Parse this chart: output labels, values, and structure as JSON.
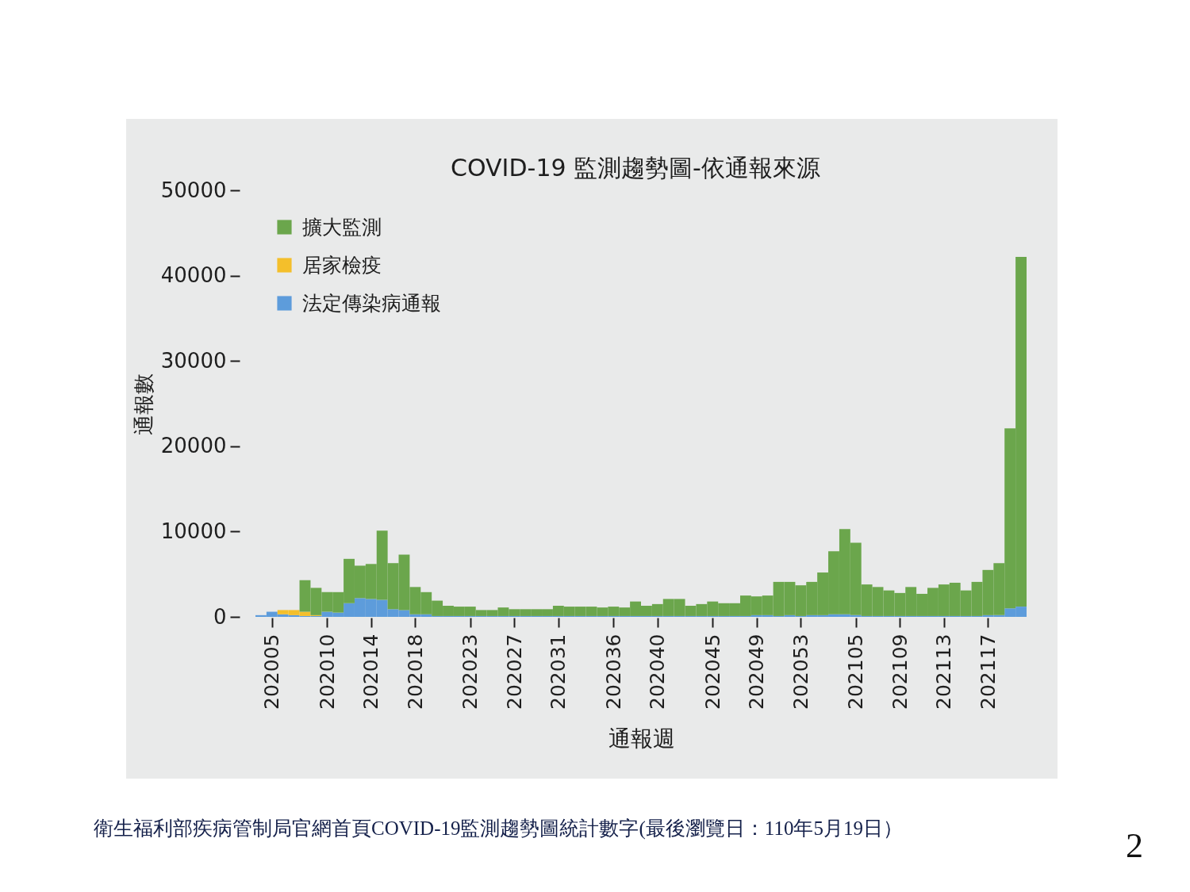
{
  "chart_data": {
    "type": "bar",
    "title": "COVID-19 監測趨勢圖-依通報來源",
    "xlabel": "通報週",
    "ylabel": "通報數",
    "categories": [
      null,
      "202005",
      null,
      null,
      null,
      null,
      "202010",
      null,
      null,
      null,
      "202014",
      null,
      null,
      null,
      "202018",
      null,
      null,
      null,
      null,
      "202023",
      null,
      null,
      null,
      "202027",
      null,
      null,
      null,
      "202031",
      null,
      null,
      null,
      null,
      "202036",
      null,
      null,
      null,
      "202040",
      null,
      null,
      null,
      null,
      "202045",
      null,
      null,
      null,
      "202049",
      null,
      null,
      null,
      "202053",
      null,
      null,
      null,
      null,
      "202105",
      null,
      null,
      null,
      "202109",
      null,
      null,
      null,
      "202113",
      null,
      null,
      null,
      "202117",
      null,
      null,
      null
    ],
    "series": [
      {
        "name": "法定傳染病通報",
        "color": "#5d9cdb",
        "values": [
          200,
          600,
          300,
          200,
          100,
          100,
          600,
          500,
          1600,
          2200,
          2100,
          2000,
          900,
          800,
          300,
          300,
          100,
          100,
          100,
          100,
          100,
          100,
          100,
          100,
          100,
          100,
          100,
          100,
          100,
          100,
          100,
          100,
          100,
          100,
          100,
          100,
          100,
          100,
          100,
          100,
          100,
          100,
          100,
          100,
          100,
          200,
          200,
          100,
          200,
          100,
          200,
          200,
          300,
          300,
          200,
          100,
          100,
          100,
          100,
          100,
          100,
          100,
          100,
          100,
          100,
          100,
          200,
          200,
          1000,
          1200
        ]
      },
      {
        "name": "居家檢疫",
        "color": "#f4bf2b",
        "values": [
          null,
          null,
          500,
          600,
          500,
          100,
          null,
          null,
          null,
          null,
          null,
          null,
          null,
          null,
          null,
          null,
          null,
          null,
          null,
          null,
          null,
          null,
          null,
          null,
          null,
          null,
          null,
          null,
          null,
          null,
          null,
          null,
          null,
          null,
          null,
          null,
          null,
          null,
          null,
          null,
          null,
          null,
          null,
          null,
          null,
          null,
          null,
          null,
          null,
          null,
          null,
          null,
          null,
          null,
          null,
          null,
          null,
          null,
          null,
          null,
          null,
          null,
          null,
          null,
          null,
          null,
          null,
          null,
          null,
          null
        ]
      },
      {
        "name": "擴大監測",
        "color": "#6ba64c",
        "values": [
          null,
          null,
          null,
          null,
          3700,
          3200,
          2300,
          2400,
          5200,
          3800,
          4100,
          8100,
          5400,
          6500,
          3200,
          2600,
          1800,
          1200,
          1100,
          1100,
          700,
          700,
          1000,
          800,
          800,
          800,
          800,
          1200,
          1100,
          1100,
          1100,
          1000,
          1100,
          1000,
          1700,
          1200,
          1400,
          2000,
          2000,
          1200,
          1400,
          1700,
          1500,
          1500,
          2400,
          2200,
          2300,
          4000,
          3900,
          3600,
          3900,
          5000,
          7400,
          10000,
          8500,
          3700,
          3400,
          3000,
          2700,
          3400,
          2600,
          3300,
          3700,
          3900,
          3000,
          4000,
          5300,
          6100,
          21100,
          41000
        ]
      }
    ],
    "stacked": true,
    "ylim": [
      0,
      50000
    ],
    "yticks": [
      0,
      10000,
      20000,
      30000,
      40000,
      50000
    ],
    "legend": "top left",
    "annotations": [
      "衛生福利部疾病管制局官網首頁COVID-19監測趨勢圖統計數字(最後瀏覽日：110年5月19日）",
      "2"
    ]
  }
}
